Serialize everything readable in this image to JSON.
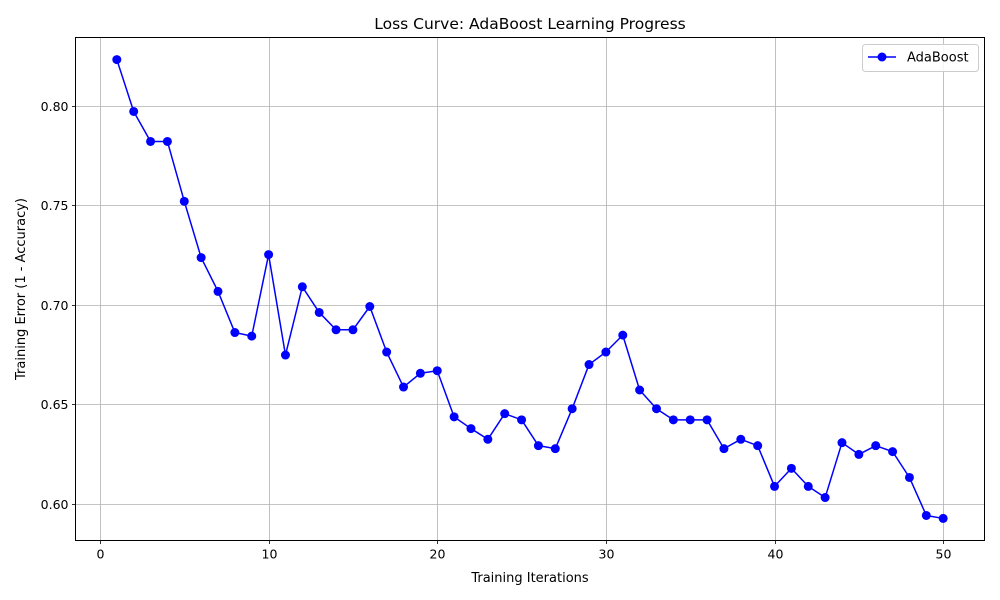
{
  "chart_data": {
    "type": "line",
    "title": "Loss Curve: AdaBoost Learning Progress",
    "xlabel": "Training Iterations",
    "ylabel": "Training Error (1 - Accuracy)",
    "xlim": [
      -1.45,
      52.45
    ],
    "ylim": [
      0.5815,
      0.8345
    ],
    "xticks": [
      0,
      10,
      20,
      30,
      40,
      50
    ],
    "xtick_labels": [
      "0",
      "10",
      "20",
      "30",
      "40",
      "50"
    ],
    "yticks": [
      0.6,
      0.65,
      0.7,
      0.75,
      0.8
    ],
    "ytick_labels": [
      "0.60",
      "0.65",
      "0.70",
      "0.75",
      "0.80"
    ],
    "grid": true,
    "legend_position": "top-right",
    "series": [
      {
        "name": "AdaBoost",
        "color": "#0000ff",
        "marker": "circle",
        "x": [
          1,
          2,
          3,
          4,
          5,
          6,
          7,
          8,
          9,
          10,
          11,
          12,
          13,
          14,
          15,
          16,
          17,
          18,
          19,
          20,
          21,
          22,
          23,
          24,
          25,
          26,
          27,
          28,
          29,
          30,
          31,
          32,
          33,
          34,
          35,
          36,
          37,
          38,
          39,
          40,
          41,
          42,
          43,
          44,
          45,
          46,
          47,
          48,
          49,
          50
        ],
        "y": [
          0.8234,
          0.7973,
          0.7822,
          0.7822,
          0.7521,
          0.7238,
          0.7068,
          0.6861,
          0.6843,
          0.7253,
          0.6748,
          0.7091,
          0.6962,
          0.6875,
          0.6875,
          0.6992,
          0.6763,
          0.6587,
          0.6656,
          0.6669,
          0.6437,
          0.6378,
          0.6324,
          0.6453,
          0.6422,
          0.6292,
          0.6277,
          0.6478,
          0.67,
          0.6763,
          0.6848,
          0.6572,
          0.6478,
          0.6422,
          0.6422,
          0.6422,
          0.6277,
          0.6324,
          0.6292,
          0.6087,
          0.6178,
          0.6087,
          0.6031,
          0.6307,
          0.6248,
          0.6292,
          0.6262,
          0.6132,
          0.5941,
          0.5926
        ]
      }
    ]
  }
}
